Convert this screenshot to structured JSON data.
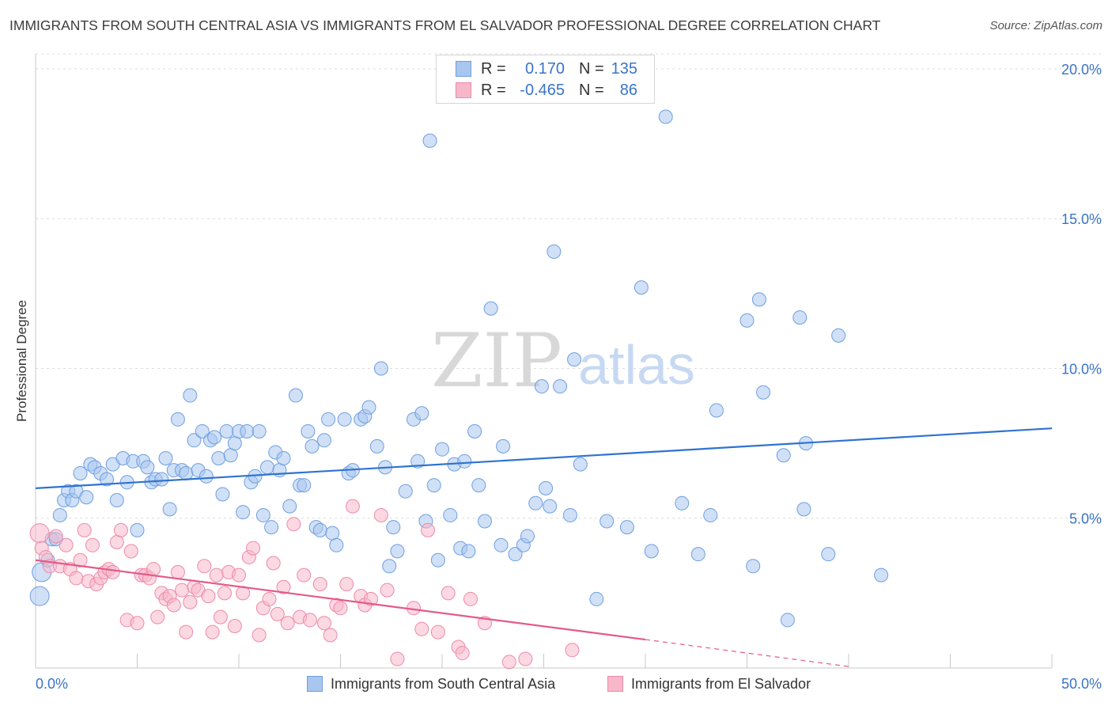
{
  "header": {
    "title": "IMMIGRANTS FROM SOUTH CENTRAL ASIA VS IMMIGRANTS FROM EL SALVADOR PROFESSIONAL DEGREE CORRELATION CHART",
    "source": "Source: ZipAtlas.com"
  },
  "watermark": {
    "zip": "ZIP",
    "atlas": "atlas"
  },
  "legend_top": {
    "rows": [
      {
        "r_label": "R =",
        "r_value": "0.170",
        "n_label": "N =",
        "n_value": "135"
      },
      {
        "r_label": "R =",
        "r_value": "-0.465",
        "n_label": "N =",
        "n_value": "86"
      }
    ]
  },
  "colors": {
    "blue_fill": "#a9c6ee",
    "blue_stroke": "#6f9fe0",
    "blue_line": "#2f73d0",
    "pink_fill": "#f7b8ca",
    "pink_stroke": "#ee8aaa",
    "pink_line": "#e35a88",
    "grid": "#dcdcdc",
    "axis_text_blue": "#3a74c9"
  },
  "chart_data": {
    "type": "scatter",
    "title": "IMMIGRANTS FROM SOUTH CENTRAL ASIA VS IMMIGRANTS FROM EL SALVADOR PROFESSIONAL DEGREE CORRELATION CHART",
    "xlabel": "",
    "ylabel": "Professional Degree",
    "xlim": [
      0,
      50
    ],
    "ylim": [
      0,
      20.5
    ],
    "x_tick_labels": [
      "0.0%",
      "50.0%"
    ],
    "y_ticks": [
      5,
      10,
      15,
      20
    ],
    "y_tick_labels": [
      "5.0%",
      "10.0%",
      "15.0%",
      "20.0%"
    ],
    "grid": true,
    "legend_position": "bottom-center",
    "series": [
      {
        "name": "Immigrants from South Central Asia",
        "color": "#6f9fe0",
        "trend": {
          "x": [
            0,
            50
          ],
          "y": [
            6.0,
            8.0
          ]
        },
        "points": [
          [
            0.2,
            2.4
          ],
          [
            0.3,
            3.2
          ],
          [
            0.6,
            3.6
          ],
          [
            0.8,
            4.3
          ],
          [
            1.0,
            4.3
          ],
          [
            1.2,
            5.1
          ],
          [
            1.4,
            5.6
          ],
          [
            1.6,
            5.9
          ],
          [
            1.8,
            5.6
          ],
          [
            2.0,
            5.9
          ],
          [
            2.2,
            6.5
          ],
          [
            2.5,
            5.7
          ],
          [
            2.7,
            6.8
          ],
          [
            2.9,
            6.7
          ],
          [
            3.2,
            6.5
          ],
          [
            3.5,
            6.3
          ],
          [
            3.8,
            6.8
          ],
          [
            4.0,
            5.6
          ],
          [
            4.3,
            7.0
          ],
          [
            4.5,
            6.2
          ],
          [
            4.8,
            6.9
          ],
          [
            5.0,
            4.6
          ],
          [
            5.3,
            6.9
          ],
          [
            5.5,
            6.7
          ],
          [
            5.7,
            6.2
          ],
          [
            5.9,
            6.3
          ],
          [
            6.2,
            6.3
          ],
          [
            6.4,
            7.0
          ],
          [
            6.6,
            5.3
          ],
          [
            6.8,
            6.6
          ],
          [
            7.0,
            8.3
          ],
          [
            7.2,
            6.6
          ],
          [
            7.4,
            6.5
          ],
          [
            7.6,
            9.1
          ],
          [
            7.8,
            7.6
          ],
          [
            8.0,
            6.6
          ],
          [
            8.2,
            7.9
          ],
          [
            8.4,
            6.4
          ],
          [
            8.6,
            7.6
          ],
          [
            8.8,
            7.7
          ],
          [
            9.0,
            7.0
          ],
          [
            9.2,
            5.8
          ],
          [
            9.4,
            7.9
          ],
          [
            9.6,
            7.1
          ],
          [
            9.8,
            7.5
          ],
          [
            10.0,
            7.9
          ],
          [
            10.2,
            5.2
          ],
          [
            10.4,
            7.9
          ],
          [
            10.6,
            6.2
          ],
          [
            10.8,
            6.4
          ],
          [
            11.0,
            7.9
          ],
          [
            11.2,
            5.1
          ],
          [
            11.4,
            6.7
          ],
          [
            11.6,
            4.7
          ],
          [
            11.8,
            7.2
          ],
          [
            12.0,
            6.6
          ],
          [
            12.2,
            7.0
          ],
          [
            12.5,
            5.4
          ],
          [
            12.8,
            9.1
          ],
          [
            13.0,
            6.1
          ],
          [
            13.2,
            6.1
          ],
          [
            13.4,
            7.9
          ],
          [
            13.6,
            7.4
          ],
          [
            13.8,
            4.7
          ],
          [
            14.0,
            4.6
          ],
          [
            14.2,
            7.6
          ],
          [
            14.4,
            8.3
          ],
          [
            14.6,
            4.5
          ],
          [
            14.8,
            4.1
          ],
          [
            15.2,
            8.3
          ],
          [
            15.4,
            6.5
          ],
          [
            15.6,
            6.6
          ],
          [
            16.0,
            8.3
          ],
          [
            16.2,
            8.4
          ],
          [
            16.4,
            8.7
          ],
          [
            16.8,
            7.4
          ],
          [
            17.0,
            10.0
          ],
          [
            17.2,
            6.7
          ],
          [
            17.4,
            3.4
          ],
          [
            17.6,
            4.7
          ],
          [
            17.8,
            3.9
          ],
          [
            18.2,
            5.9
          ],
          [
            18.6,
            8.3
          ],
          [
            18.8,
            6.9
          ],
          [
            19.0,
            8.5
          ],
          [
            19.2,
            4.9
          ],
          [
            19.4,
            17.6
          ],
          [
            19.6,
            6.1
          ],
          [
            19.8,
            3.6
          ],
          [
            20.0,
            7.3
          ],
          [
            20.4,
            5.1
          ],
          [
            20.6,
            6.8
          ],
          [
            20.9,
            4.0
          ],
          [
            21.1,
            6.9
          ],
          [
            21.3,
            3.9
          ],
          [
            21.6,
            7.9
          ],
          [
            21.8,
            6.1
          ],
          [
            22.1,
            4.9
          ],
          [
            22.4,
            12.0
          ],
          [
            22.9,
            4.1
          ],
          [
            23.0,
            7.4
          ],
          [
            23.6,
            3.8
          ],
          [
            24.0,
            4.1
          ],
          [
            24.2,
            4.4
          ],
          [
            24.6,
            5.5
          ],
          [
            24.9,
            9.4
          ],
          [
            25.1,
            6.0
          ],
          [
            25.3,
            5.4
          ],
          [
            25.5,
            13.9
          ],
          [
            25.8,
            9.4
          ],
          [
            26.3,
            5.1
          ],
          [
            26.5,
            10.3
          ],
          [
            26.8,
            6.8
          ],
          [
            27.6,
            2.3
          ],
          [
            28.1,
            4.9
          ],
          [
            29.1,
            4.7
          ],
          [
            29.8,
            12.7
          ],
          [
            30.3,
            3.9
          ],
          [
            31.0,
            18.4
          ],
          [
            31.8,
            5.5
          ],
          [
            32.6,
            3.8
          ],
          [
            33.2,
            5.1
          ],
          [
            33.5,
            8.6
          ],
          [
            35.0,
            11.6
          ],
          [
            35.3,
            3.4
          ],
          [
            35.6,
            12.3
          ],
          [
            35.8,
            9.2
          ],
          [
            36.8,
            7.1
          ],
          [
            37.0,
            1.6
          ],
          [
            37.6,
            11.7
          ],
          [
            37.8,
            5.3
          ],
          [
            37.9,
            7.5
          ],
          [
            39.0,
            3.8
          ],
          [
            39.5,
            11.1
          ],
          [
            41.6,
            3.1
          ]
        ]
      },
      {
        "name": "Immigrants from El Salvador",
        "color": "#ee8aaa",
        "trend": {
          "x": [
            0,
            30
          ],
          "y": [
            3.6,
            0.95
          ]
        },
        "trend_dashed": {
          "x": [
            30,
            40
          ],
          "y": [
            0.95,
            0.05
          ]
        },
        "points": [
          [
            0.2,
            4.5
          ],
          [
            0.3,
            4.0
          ],
          [
            0.5,
            3.7
          ],
          [
            0.7,
            3.4
          ],
          [
            1.0,
            4.4
          ],
          [
            1.2,
            3.4
          ],
          [
            1.5,
            4.1
          ],
          [
            1.7,
            3.3
          ],
          [
            2.0,
            3.0
          ],
          [
            2.2,
            3.6
          ],
          [
            2.4,
            4.6
          ],
          [
            2.6,
            2.9
          ],
          [
            2.8,
            4.1
          ],
          [
            3.0,
            2.8
          ],
          [
            3.2,
            3.0
          ],
          [
            3.4,
            3.2
          ],
          [
            3.6,
            3.3
          ],
          [
            3.8,
            3.2
          ],
          [
            4.0,
            4.2
          ],
          [
            4.2,
            4.6
          ],
          [
            4.5,
            1.6
          ],
          [
            4.7,
            3.9
          ],
          [
            5.0,
            1.5
          ],
          [
            5.2,
            3.1
          ],
          [
            5.4,
            3.1
          ],
          [
            5.6,
            3.0
          ],
          [
            5.8,
            3.3
          ],
          [
            6.0,
            1.7
          ],
          [
            6.2,
            2.5
          ],
          [
            6.4,
            2.3
          ],
          [
            6.6,
            2.4
          ],
          [
            6.8,
            2.1
          ],
          [
            7.0,
            3.2
          ],
          [
            7.2,
            2.6
          ],
          [
            7.4,
            1.2
          ],
          [
            7.6,
            2.2
          ],
          [
            7.8,
            2.7
          ],
          [
            8.0,
            2.6
          ],
          [
            8.3,
            3.4
          ],
          [
            8.5,
            2.4
          ],
          [
            8.7,
            1.2
          ],
          [
            8.9,
            3.1
          ],
          [
            9.1,
            1.7
          ],
          [
            9.3,
            2.5
          ],
          [
            9.5,
            3.2
          ],
          [
            9.8,
            1.4
          ],
          [
            10.0,
            3.1
          ],
          [
            10.2,
            2.5
          ],
          [
            10.5,
            3.7
          ],
          [
            10.7,
            4.0
          ],
          [
            11.0,
            1.1
          ],
          [
            11.2,
            2.0
          ],
          [
            11.5,
            2.3
          ],
          [
            11.7,
            3.5
          ],
          [
            11.9,
            1.8
          ],
          [
            12.2,
            2.7
          ],
          [
            12.4,
            1.5
          ],
          [
            12.7,
            4.8
          ],
          [
            13.0,
            1.7
          ],
          [
            13.2,
            3.1
          ],
          [
            13.5,
            1.6
          ],
          [
            14.0,
            2.8
          ],
          [
            14.2,
            1.5
          ],
          [
            14.5,
            1.1
          ],
          [
            14.8,
            2.1
          ],
          [
            15.0,
            2.0
          ],
          [
            15.3,
            2.8
          ],
          [
            15.6,
            5.4
          ],
          [
            16.0,
            2.4
          ],
          [
            16.2,
            2.1
          ],
          [
            16.5,
            2.3
          ],
          [
            17.0,
            5.1
          ],
          [
            17.3,
            2.6
          ],
          [
            17.8,
            0.3
          ],
          [
            18.6,
            2.0
          ],
          [
            19.0,
            1.3
          ],
          [
            19.3,
            4.6
          ],
          [
            19.8,
            1.2
          ],
          [
            20.3,
            2.5
          ],
          [
            20.8,
            0.7
          ],
          [
            21.0,
            0.5
          ],
          [
            21.4,
            2.3
          ],
          [
            22.1,
            1.5
          ],
          [
            23.3,
            0.2
          ],
          [
            24.1,
            0.3
          ],
          [
            26.4,
            0.6
          ]
        ]
      }
    ]
  },
  "legend_bottom": {
    "items": [
      {
        "label": "Immigrants from South Central Asia"
      },
      {
        "label": "Immigrants from El Salvador"
      }
    ]
  }
}
